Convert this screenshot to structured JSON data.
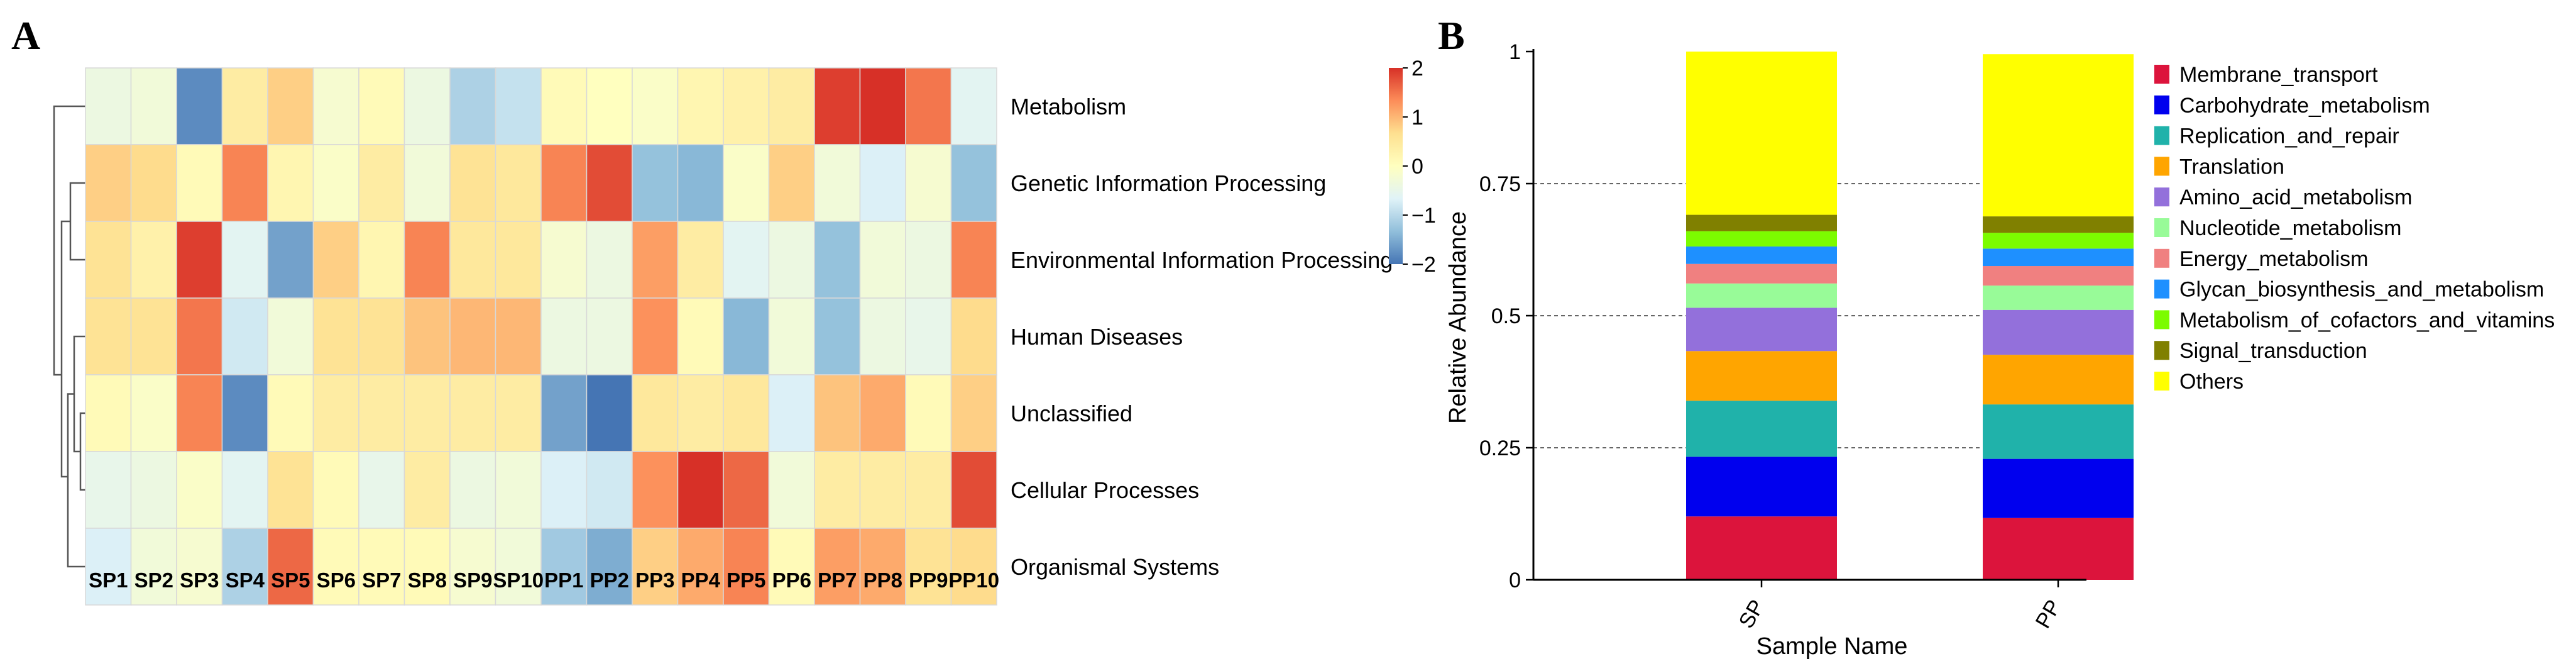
{
  "chart_data": [
    {
      "type": "heatmap",
      "panel_label": "A",
      "rows": [
        "Metabolism",
        "Genetic Information Processing",
        "Environmental Information Processing",
        "Human Diseases",
        "Unclassified",
        "Cellular Processes",
        "Organismal Systems"
      ],
      "columns": [
        "SP1",
        "SP2",
        "SP3",
        "SP4",
        "SP5",
        "SP6",
        "SP7",
        "SP8",
        "SP9",
        "SP10",
        "PP1",
        "PP2",
        "PP3",
        "PP4",
        "PP5",
        "PP6",
        "PP7",
        "PP8",
        "PP9",
        "PP10"
      ],
      "values": [
        [
          -0.4,
          -0.3,
          -1.8,
          0.4,
          0.8,
          -0.2,
          0.1,
          -0.4,
          -1.1,
          -0.9,
          0.1,
          0.0,
          -0.1,
          0.2,
          0.3,
          0.4,
          1.9,
          2.0,
          1.5,
          -0.6
        ],
        [
          0.8,
          0.7,
          0.1,
          1.4,
          0.2,
          -0.1,
          0.4,
          -0.3,
          0.6,
          0.5,
          1.4,
          1.8,
          -1.3,
          -1.4,
          -0.1,
          0.8,
          -0.3,
          -0.7,
          -0.2,
          -1.3
        ],
        [
          0.6,
          0.3,
          1.9,
          -0.6,
          -1.6,
          0.8,
          0.2,
          1.4,
          0.5,
          0.5,
          -0.2,
          -0.4,
          1.2,
          0.4,
          -0.6,
          -0.4,
          -1.3,
          -0.3,
          -0.4,
          1.4
        ],
        [
          0.6,
          0.6,
          1.5,
          -0.8,
          -0.3,
          0.6,
          0.6,
          0.9,
          1.0,
          1.0,
          -0.4,
          -0.4,
          1.3,
          0.1,
          -1.4,
          -0.3,
          -1.3,
          -0.4,
          -0.5,
          0.7
        ],
        [
          0.1,
          -0.1,
          1.4,
          -1.8,
          0.1,
          0.4,
          0.4,
          0.4,
          0.4,
          0.4,
          -1.6,
          -2.0,
          0.5,
          0.4,
          0.5,
          -0.7,
          0.9,
          1.1,
          0.1,
          0.8
        ],
        [
          -0.5,
          -0.4,
          -0.1,
          -0.6,
          0.6,
          0.1,
          -0.5,
          0.4,
          -0.4,
          -0.3,
          -0.7,
          -0.8,
          1.3,
          2.0,
          1.6,
          -0.3,
          0.4,
          0.4,
          0.4,
          1.8
        ],
        [
          -0.7,
          -0.3,
          -0.2,
          -1.1,
          1.6,
          0.1,
          0.1,
          0.1,
          -0.2,
          -0.3,
          -1.2,
          -1.5,
          0.8,
          1.1,
          1.4,
          0.1,
          1.2,
          1.1,
          0.6,
          0.7
        ]
      ],
      "color_scale": {
        "min": -2,
        "max": 2,
        "ticks": [
          2,
          1,
          0,
          -1,
          -2
        ],
        "tick_labels": [
          "2",
          "1",
          "0",
          "−1",
          "−2"
        ],
        "colors": [
          "#4575b4",
          "#91bfdb",
          "#e0f3f8",
          "#ffffbf",
          "#fee090",
          "#fc8d59",
          "#d73027"
        ]
      },
      "row_dendrogram": true
    },
    {
      "type": "bar",
      "stacked": true,
      "panel_label": "B",
      "categories": [
        "SP",
        "PP"
      ],
      "xlabel": "Sample Name",
      "ylabel": "Relative Abundance",
      "ylim": [
        0,
        1
      ],
      "yticks": [
        0,
        0.25,
        0.5,
        0.75,
        1
      ],
      "ytick_labels": [
        "0",
        "0.25",
        "0.5",
        "0.75",
        "1"
      ],
      "grid": "dashed horizontal",
      "legend_position": "right",
      "series": [
        {
          "name": "Membrane_transport",
          "color": "#dc143c",
          "values": [
            0.12,
            0.117
          ]
        },
        {
          "name": "Carbohydrate_metabolism",
          "color": "#0000ee",
          "values": [
            0.113,
            0.112
          ]
        },
        {
          "name": "Replication_and_repair",
          "color": "#20b2aa",
          "values": [
            0.106,
            0.103
          ]
        },
        {
          "name": "Translation",
          "color": "#ffa500",
          "values": [
            0.094,
            0.094
          ]
        },
        {
          "name": "Amino_acid_metabolism",
          "color": "#9370db",
          "values": [
            0.082,
            0.085
          ]
        },
        {
          "name": "Nucleotide_metabolism",
          "color": "#98fb98",
          "values": [
            0.046,
            0.046
          ]
        },
        {
          "name": "Energy_metabolism",
          "color": "#f08080",
          "values": [
            0.037,
            0.037
          ]
        },
        {
          "name": "Glycan_biosynthesis_and_metabolism",
          "color": "#1e90ff",
          "values": [
            0.033,
            0.033
          ]
        },
        {
          "name": "Metabolism_of_cofactors_and_vitamins",
          "color": "#7cfc00",
          "values": [
            0.029,
            0.03
          ]
        },
        {
          "name": "Signal_transduction",
          "color": "#808000",
          "values": [
            0.031,
            0.031
          ]
        },
        {
          "name": "Others",
          "color": "#ffff00",
          "values": [
            0.309,
            0.307
          ]
        }
      ]
    }
  ]
}
